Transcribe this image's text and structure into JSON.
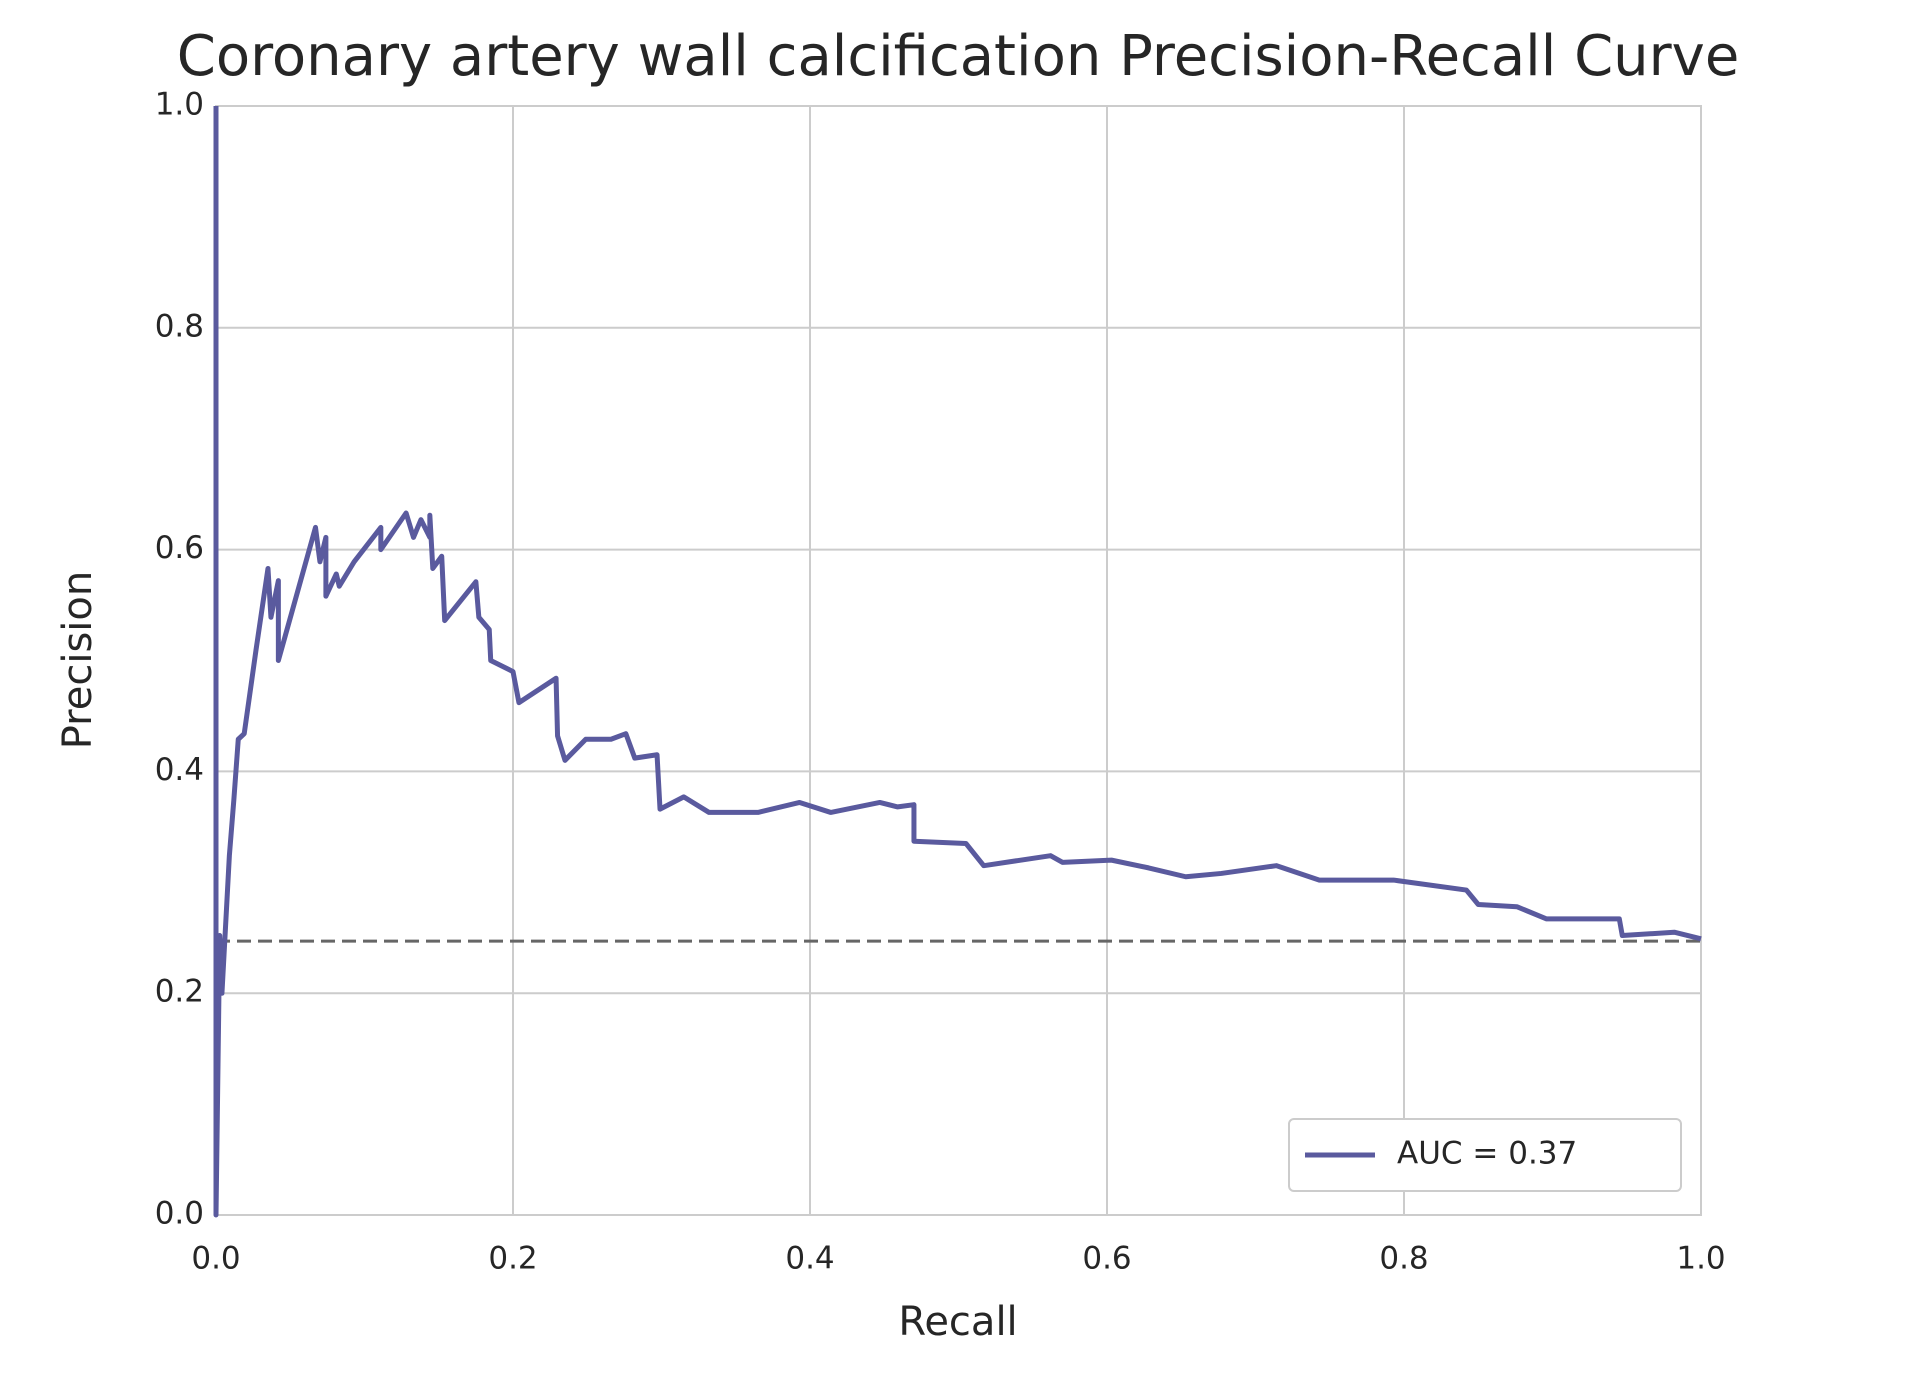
{
  "chart_data": {
    "type": "line",
    "title": "Coronary artery wall calcification Precision-Recall Curve",
    "x_label": "Recall",
    "y_label": "Precision",
    "xlim": [
      0,
      1
    ],
    "ylim": [
      0,
      1
    ],
    "xticks": [
      {
        "value": 0,
        "label": "0.0"
      },
      0.2,
      0.4,
      0.6,
      0.8,
      {
        "value": 1,
        "label": "1.0"
      }
    ],
    "yticks": [
      {
        "value": 0,
        "label": "0.0"
      },
      0.2,
      0.4,
      0.6,
      0.8,
      {
        "value": 1,
        "label": "1.0"
      }
    ],
    "grid": true,
    "legend": "lower right",
    "series": [
      {
        "name": "AUC = 0.37",
        "color": "#5a5a9e",
        "x": [
          0,
          0,
          0.0025,
          0.004,
          0.009,
          0.012,
          0.015,
          0.019,
          0.027,
          0.035,
          0.037,
          0.042,
          0.042,
          0.067,
          0.07,
          0.074,
          0.074,
          0.081,
          0.083,
          0.093,
          0.111,
          0.111,
          0.128,
          0.133,
          0.138,
          0.144,
          0.144,
          0.146,
          0.152,
          0.154,
          0.175,
          0.177,
          0.184,
          0.185,
          0.2,
          0.204,
          0.229,
          0.23,
          0.235,
          0.249,
          0.266,
          0.276,
          0.282,
          0.297,
          0.299,
          0.315,
          0.332,
          0.365,
          0.393,
          0.414,
          0.447,
          0.459,
          0.47,
          0.47,
          0.505,
          0.517,
          0.562,
          0.57,
          0.603,
          0.628,
          0.653,
          0.677,
          0.714,
          0.743,
          0.793,
          0.842,
          0.85,
          0.876,
          0.896,
          0.945,
          0.947,
          0.982,
          1.0
        ],
        "values": [
          1.0,
          0.0,
          0.252,
          0.2,
          0.324,
          0.374,
          0.429,
          0.434,
          0.51,
          0.583,
          0.539,
          0.572,
          0.5,
          0.62,
          0.589,
          0.611,
          0.558,
          0.578,
          0.567,
          0.589,
          0.62,
          0.6,
          0.633,
          0.611,
          0.627,
          0.611,
          0.631,
          0.583,
          0.594,
          0.536,
          0.571,
          0.539,
          0.528,
          0.5,
          0.49,
          0.462,
          0.484,
          0.432,
          0.41,
          0.429,
          0.429,
          0.434,
          0.412,
          0.415,
          0.366,
          0.377,
          0.363,
          0.363,
          0.372,
          0.363,
          0.372,
          0.368,
          0.37,
          0.337,
          0.335,
          0.315,
          0.324,
          0.318,
          0.32,
          0.313,
          0.305,
          0.308,
          0.315,
          0.302,
          0.302,
          0.293,
          0.28,
          0.278,
          0.267,
          0.267,
          0.252,
          0.255,
          0.249
        ]
      }
    ],
    "hlines": [
      {
        "y": 0.247,
        "color": "#666666",
        "style": "dashed"
      }
    ]
  }
}
